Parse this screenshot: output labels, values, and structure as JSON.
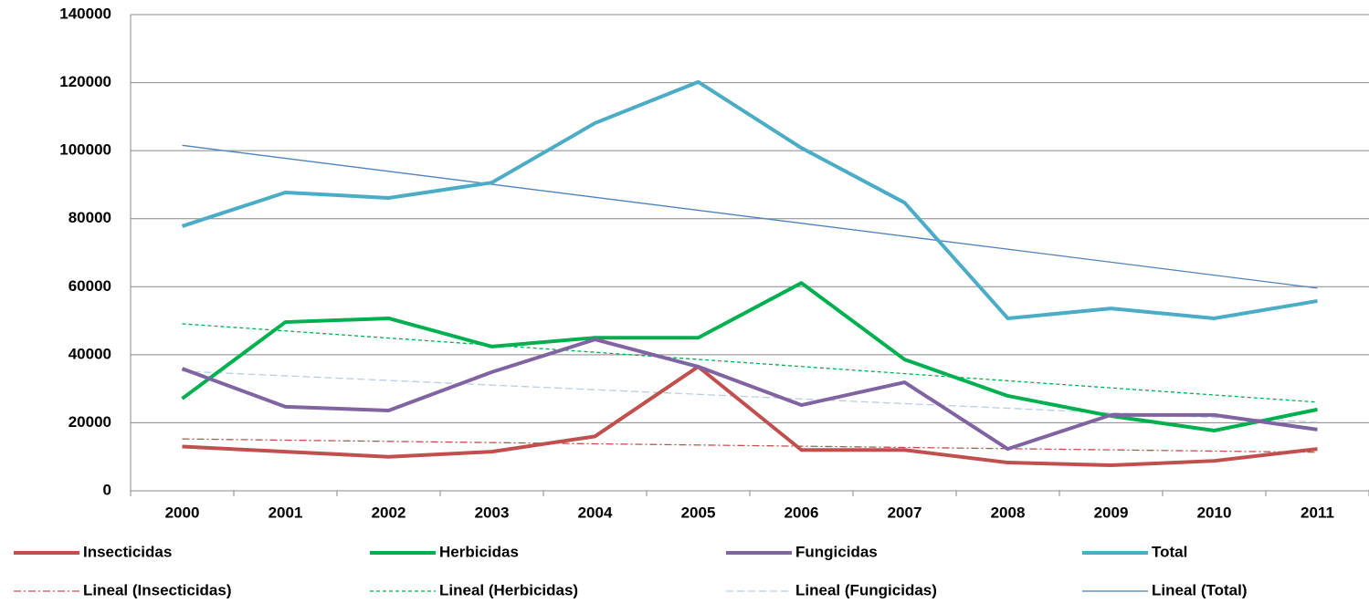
{
  "chart_data": {
    "type": "line",
    "categories": [
      "2000",
      "2001",
      "2002",
      "2003",
      "2004",
      "2005",
      "2006",
      "2007",
      "2008",
      "2009",
      "2010",
      "2011"
    ],
    "series": [
      {
        "name": "Insecticidas",
        "color": "#c0504d",
        "values": [
          13000,
          11500,
          10000,
          11500,
          16000,
          36500,
          12000,
          12000,
          8300,
          7500,
          8800,
          12300
        ]
      },
      {
        "name": "Herbicidas",
        "color": "#00b050",
        "values": [
          27100,
          49600,
          50700,
          42400,
          45000,
          45000,
          61100,
          38600,
          27900,
          22000,
          17700,
          23900
        ]
      },
      {
        "name": "Fungicidas",
        "color": "#8064a2",
        "values": [
          35900,
          24700,
          23600,
          34900,
          44500,
          36500,
          25200,
          31900,
          12300,
          22300,
          22300,
          18000
        ]
      },
      {
        "name": "Total",
        "color": "#4bacc6",
        "values": [
          77800,
          87700,
          86100,
          90600,
          108100,
          120200,
          100800,
          84700,
          50700,
          53600,
          50700,
          55800
        ]
      }
    ],
    "trendlines": [
      {
        "name": "Lineal (Insecticidas)",
        "series": 0,
        "color": "#c0504d",
        "dash": "8 3 2 3"
      },
      {
        "name": "Lineal (Herbicidas)",
        "series": 1,
        "color": "#00b050",
        "dash": "4 3"
      },
      {
        "name": "Lineal (Fungicidas)",
        "series": 2,
        "color": "#b9cde5",
        "dash": "8 4"
      },
      {
        "name": "Lineal (Total)",
        "series": 3,
        "color": "#4f81bd",
        "dash": "none"
      }
    ],
    "ylim": [
      0,
      140000
    ],
    "yticks": [
      0,
      20000,
      40000,
      60000,
      80000,
      100000,
      120000,
      140000
    ],
    "grid": true
  }
}
